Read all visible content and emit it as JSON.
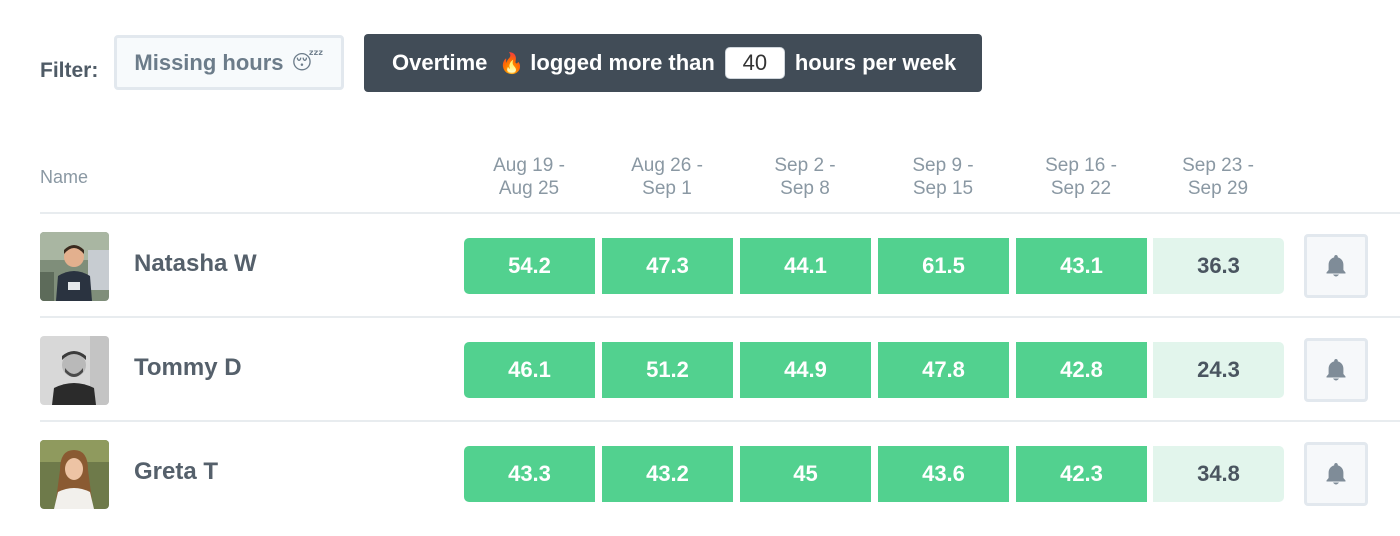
{
  "filter": {
    "label": "Filter:",
    "missing_button": {
      "label": "Missing hours",
      "emoji": "😴"
    },
    "overtime": {
      "prefix": "Overtime",
      "emoji": "🔥",
      "middle": "logged more than",
      "threshold": "40",
      "suffix": "hours per week"
    }
  },
  "table": {
    "name_header": "Name",
    "weeks": [
      {
        "line1": "Aug 19 -",
        "line2": "Aug 25"
      },
      {
        "line1": "Aug 26 -",
        "line2": "Sep 1"
      },
      {
        "line1": "Sep 2 -",
        "line2": "Sep 8"
      },
      {
        "line1": "Sep 9 -",
        "line2": "Sep 15"
      },
      {
        "line1": "Sep 16 -",
        "line2": "Sep 22"
      },
      {
        "line1": "Sep 23 -",
        "line2": "Sep 29"
      }
    ],
    "rows": [
      {
        "name": "Natasha W",
        "hours": [
          "54.2",
          "47.3",
          "44.1",
          "61.5",
          "43.1",
          "36.3"
        ]
      },
      {
        "name": "Tommy D",
        "hours": [
          "46.1",
          "51.2",
          "44.9",
          "47.8",
          "42.8",
          "24.3"
        ]
      },
      {
        "name": "Greta T",
        "hours": [
          "43.3",
          "43.2",
          "45",
          "43.6",
          "42.3",
          "34.8"
        ]
      }
    ]
  },
  "icons": {
    "notify": "bell-icon"
  },
  "colors": {
    "overtime_cell": "#52d18f",
    "under_cell": "#e2f5ec",
    "overtime_filter_bg": "#414c57"
  }
}
